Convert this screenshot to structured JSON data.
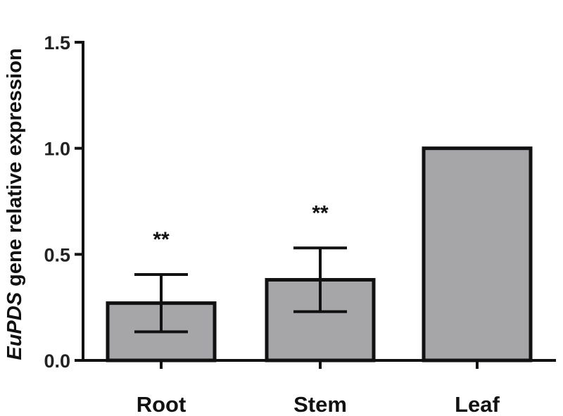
{
  "chart_data": {
    "type": "bar",
    "categories": [
      "Root",
      "Stem",
      "Leaf"
    ],
    "values": [
      0.27,
      0.38,
      1.0
    ],
    "errors": [
      0.135,
      0.15,
      0
    ],
    "significance": [
      "**",
      "**",
      ""
    ],
    "ylabel_italic": "EuPDS",
    "ylabel_rest": " gene relative expression",
    "ylim": [
      0,
      1.5
    ],
    "yticks": [
      "0.0",
      "0.5",
      "1.0",
      "1.5"
    ],
    "bar_color": "#a6a6a8",
    "edge_color": "#111111"
  }
}
